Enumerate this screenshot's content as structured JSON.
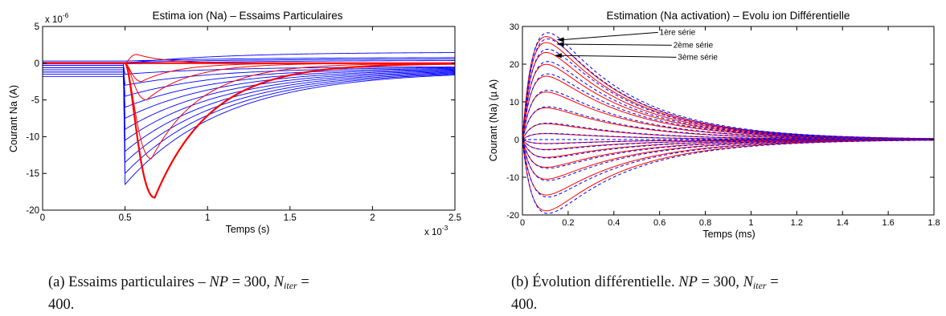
{
  "chart_data": [
    {
      "type": "line",
      "title": "Estima ion (Na) – Essaims Particulaires",
      "xlabel": "Temps (s)",
      "ylabel": "Courant Na (A)",
      "x_exponent": "x 10",
      "x_exponent_power": "-3",
      "y_exponent": "x 10",
      "y_exponent_power": "-6",
      "xlim": [
        0,
        2.5
      ],
      "ylim": [
        -20,
        5
      ],
      "xticks": [
        "0",
        "0.5",
        "1",
        "1.5",
        "2",
        "2.5"
      ],
      "yticks": [
        "5",
        "0",
        "-5",
        "-10",
        "-15",
        "-20"
      ],
      "grid": false,
      "series": [
        {
          "color": "#0000ff",
          "description_values": {
            "step_time": 0.5,
            "pre_levels": [
              0,
              -0.3,
              -0.6,
              -0.9,
              -1.2,
              -1.5,
              -1.8
            ],
            "post_peaks": [
              1.5,
              -1.5,
              -3,
              -4.5,
              -6,
              -7.5,
              -9,
              -10.5,
              -12,
              -13.5,
              -15,
              -16.5
            ],
            "final": [
              1.5,
              -0.5,
              -0.8,
              -1.0
            ]
          }
        },
        {
          "color": "#ff0000",
          "peaks_x": [
            0.57,
            0.6,
            0.63,
            0.66,
            0.68
          ],
          "peaks_y": [
            1.2,
            -2.5,
            -5,
            -13,
            -18.3
          ]
        }
      ]
    },
    {
      "type": "line",
      "title": "Estimation (Na activation) – Evolu ion Différentielle",
      "xlabel": "Temps (ms)",
      "ylabel": "Courant (Na) (µ A)",
      "xlim": [
        0,
        1.8
      ],
      "ylim": [
        -20,
        30
      ],
      "xticks": [
        "0",
        "0.2",
        "0.4",
        "0.6",
        "0.8",
        "1",
        "1.2",
        "1.4",
        "1.6",
        "1.8"
      ],
      "yticks": [
        "30",
        "20",
        "10",
        "0",
        "-10",
        "-20"
      ],
      "grid": false,
      "peak_time": 0.15,
      "decay_tau": 0.35,
      "amplitudes": [
        26,
        24.5,
        22,
        19,
        16,
        12,
        8,
        4,
        1.5,
        -1,
        -2.5,
        -4.5,
        -7,
        -10,
        -14,
        -18
      ],
      "series": [
        {
          "style": "solid",
          "color": "#ff0000"
        },
        {
          "style": "dashed",
          "color": "#0000ff"
        }
      ],
      "annotations": [
        {
          "text": "1ère série",
          "x": 0.6,
          "y": 27.8,
          "arrow_to": [
            0.15,
            26.5
          ]
        },
        {
          "text": "2ème série",
          "x": 0.66,
          "y": 24.4,
          "arrow_to": [
            0.15,
            25.3
          ]
        },
        {
          "text": "3ème série",
          "x": 0.68,
          "y": 21.2,
          "arrow_to": [
            0.14,
            22.3
          ]
        }
      ]
    }
  ],
  "captions": {
    "a": {
      "prefix": "(a) Essaims particulaires – ",
      "np": "NP",
      "eq1": " = 300, ",
      "n": "N",
      "sub": "iter",
      "eq2": " = ",
      "cont": "400."
    },
    "b": {
      "prefix": "(b) Évolution différentielle. ",
      "np": "NP",
      "eq1": " = 300, ",
      "n": "N",
      "sub": "iter",
      "eq2": " = ",
      "cont": "400."
    }
  }
}
